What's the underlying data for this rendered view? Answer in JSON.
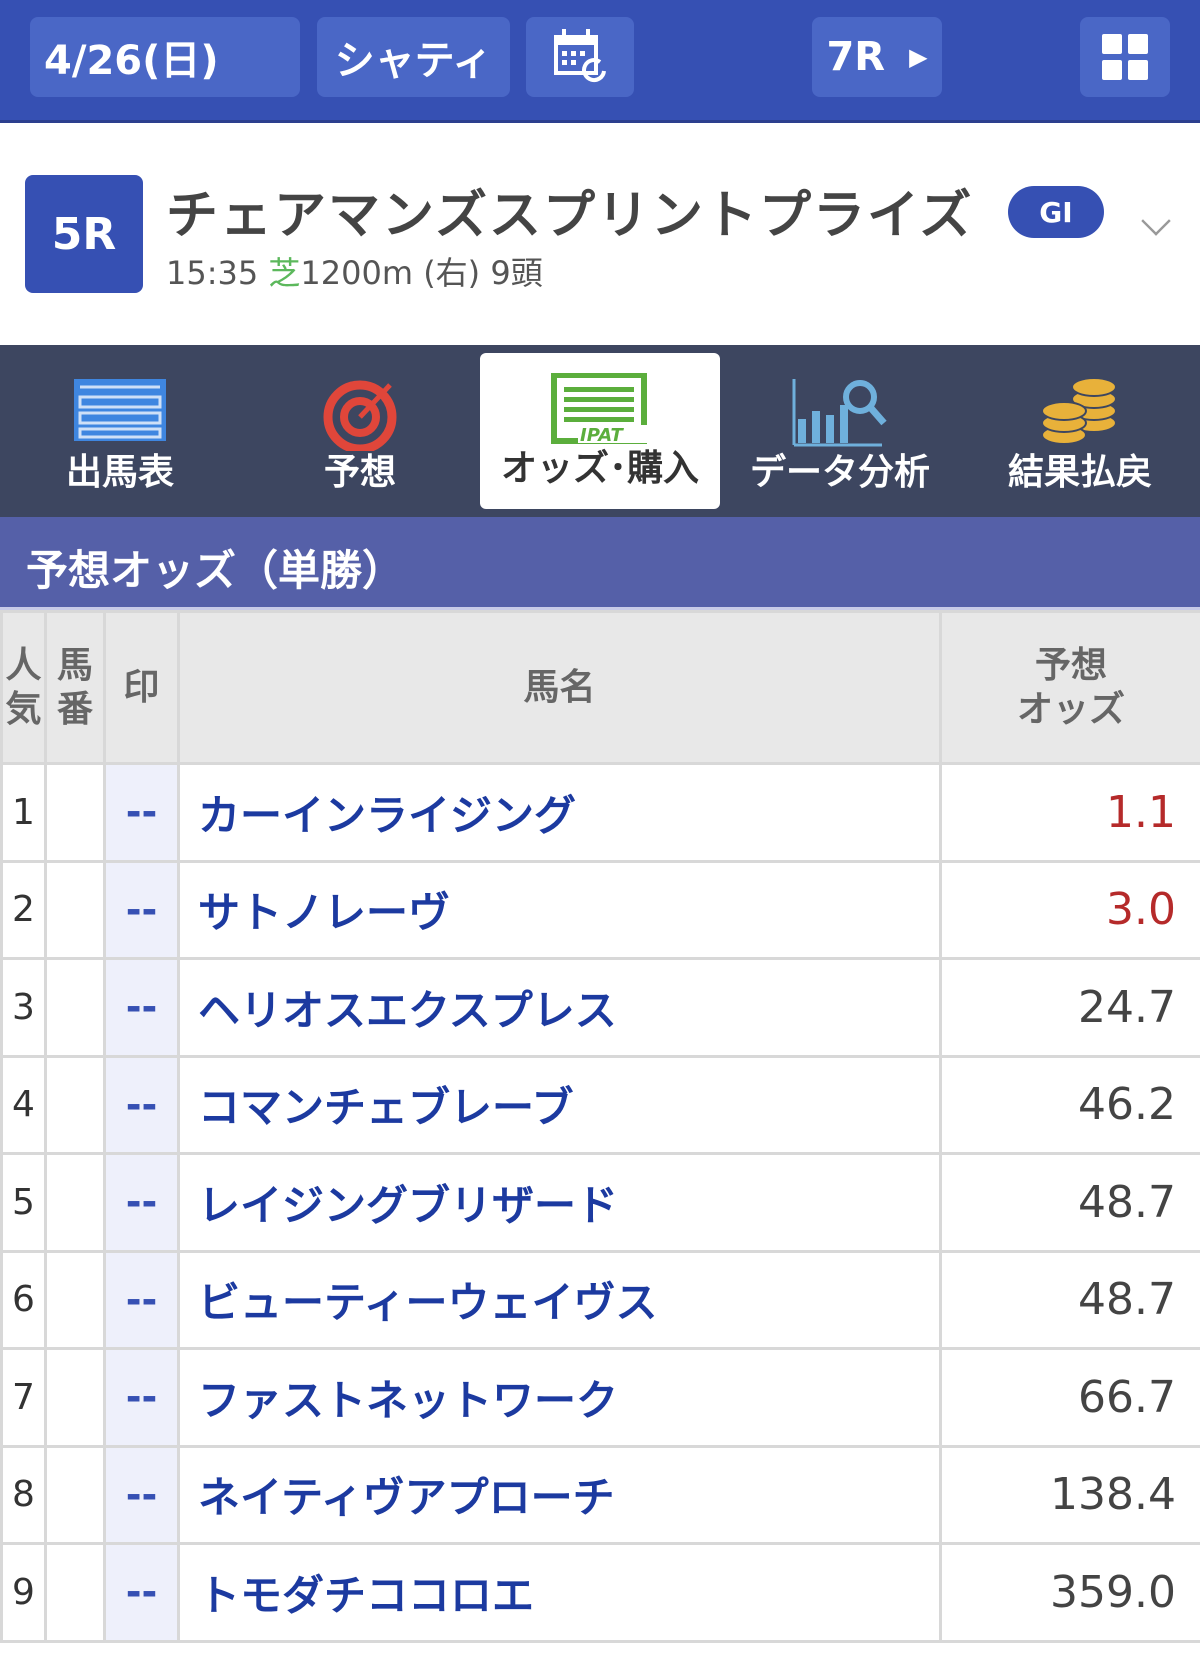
{
  "topbar": {
    "date": "4/26(日)",
    "venue": "シャティ",
    "next_race": "7R"
  },
  "race": {
    "number": "5R",
    "name": "チェアマンズスプリントプライズ",
    "grade": "GI",
    "time": "15:35",
    "surface": "芝",
    "distance": "1200m",
    "direction": "(右)",
    "runners": "9頭"
  },
  "nav": [
    {
      "label": "出馬表"
    },
    {
      "label": "予想"
    },
    {
      "label": "オッズ･購入"
    },
    {
      "label": "データ分析"
    },
    {
      "label": "結果払戻"
    }
  ],
  "nav_icon_text": "IPAT",
  "section_title": "予想オッズ（単勝）",
  "table": {
    "headers": {
      "popularity_1": "人",
      "popularity_2": "気",
      "number_1": "馬",
      "number_2": "番",
      "mark": "印",
      "name": "馬名",
      "odds_1": "予想",
      "odds_2": "オッズ"
    },
    "rows": [
      {
        "pop": "1",
        "num": "",
        "mark": "--",
        "name": "カーインライジング",
        "odds": "1.1"
      },
      {
        "pop": "2",
        "num": "",
        "mark": "--",
        "name": "サトノレーヴ",
        "odds": "3.0"
      },
      {
        "pop": "3",
        "num": "",
        "mark": "--",
        "name": "ヘリオスエクスプレス",
        "odds": "24.7"
      },
      {
        "pop": "4",
        "num": "",
        "mark": "--",
        "name": "コマンチェブレーブ",
        "odds": "46.2"
      },
      {
        "pop": "5",
        "num": "",
        "mark": "--",
        "name": "レイジングブリザード",
        "odds": "48.7"
      },
      {
        "pop": "6",
        "num": "",
        "mark": "--",
        "name": "ビューティーウェイヴス",
        "odds": "48.7"
      },
      {
        "pop": "7",
        "num": "",
        "mark": "--",
        "name": "ファストネットワーク",
        "odds": "66.7"
      },
      {
        "pop": "8",
        "num": "",
        "mark": "--",
        "name": "ネイティヴアプローチ",
        "odds": "138.4"
      },
      {
        "pop": "9",
        "num": "",
        "mark": "--",
        "name": "トモダチココロエ",
        "odds": "359.0"
      }
    ]
  },
  "colors": {
    "primary": "#3650b3",
    "nav_bg": "#3d4660",
    "section": "#5560a8",
    "favorite_odds": "#b52a2a",
    "horse_name": "#1c3aa0"
  }
}
